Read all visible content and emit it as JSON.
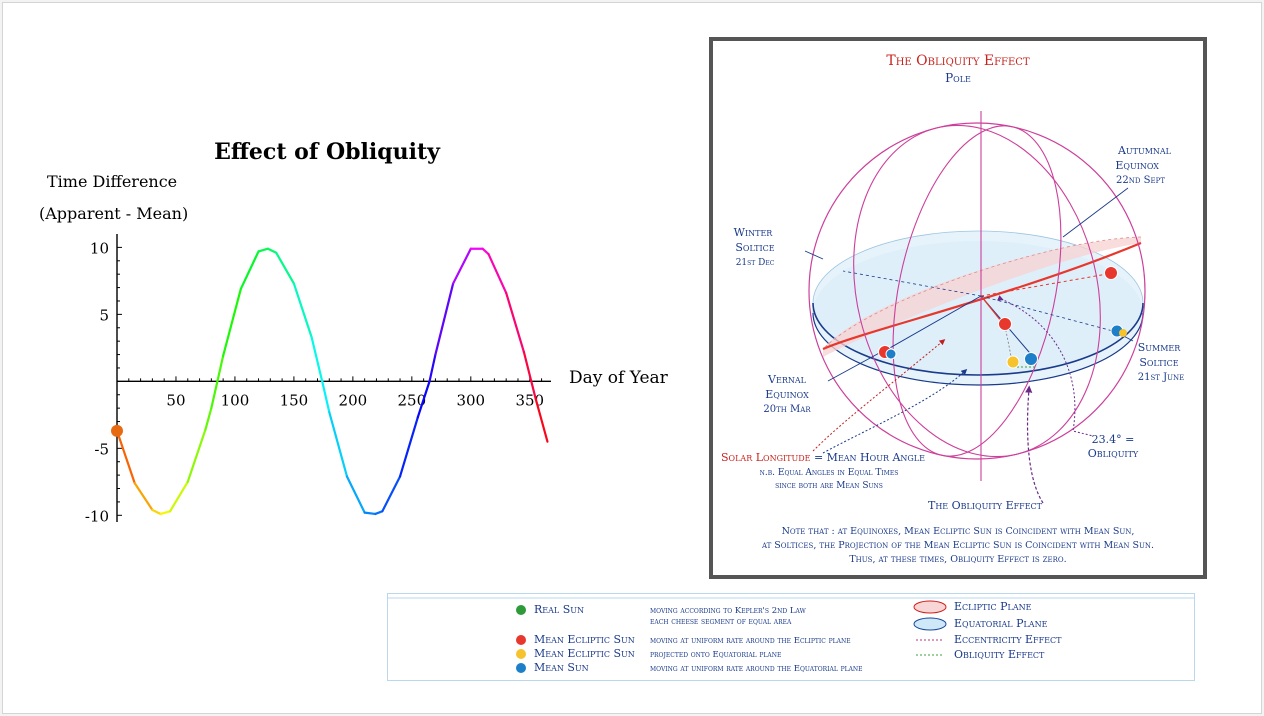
{
  "chart_data": {
    "type": "line",
    "title": "Effect of Obliquity",
    "ylabel_line1": "Time Difference",
    "ylabel_line2": "(Apparent - Mean)",
    "xlabel": "Day of Year",
    "xlim": [
      0,
      368
    ],
    "ylim": [
      -10.5,
      11
    ],
    "x_ticks": [
      50,
      100,
      150,
      200,
      250,
      300,
      350
    ],
    "y_ticks": [
      10,
      5,
      -5,
      -10
    ],
    "y_tick_labels": [
      "10",
      "5",
      "-5",
      "-10"
    ],
    "marker": {
      "x": 0,
      "y": -3.7,
      "color": "#e86a10"
    },
    "series": [
      {
        "x": [
          0,
          15,
          30,
          37,
          45,
          60,
          75,
          80,
          90,
          105,
          120,
          128,
          135,
          150,
          165,
          174,
          180,
          195,
          210,
          219,
          225,
          240,
          255,
          265,
          270,
          285,
          300,
          310,
          315,
          330,
          345,
          355,
          365
        ],
        "y": [
          -3.7,
          -7.6,
          -9.6,
          -9.9,
          -9.7,
          -7.5,
          -3.6,
          -2.0,
          1.9,
          6.9,
          9.7,
          9.9,
          9.6,
          7.3,
          3.3,
          0.0,
          -2.3,
          -7.1,
          -9.8,
          -9.9,
          -9.7,
          -7.1,
          -2.7,
          0.0,
          2.0,
          7.3,
          9.9,
          9.9,
          9.5,
          6.6,
          2.2,
          -1.3,
          -4.5
        ]
      }
    ]
  },
  "diagram": {
    "title": "The Obliquity Effect",
    "pole_label": "Pole",
    "autumnal": {
      "line1": "Autumnal",
      "line2": "Equinox",
      "date": "22nd Sept"
    },
    "winter": {
      "line1": "Winter",
      "line2": "Soltice",
      "date": "21st Dec"
    },
    "summer": {
      "line1": "Summer",
      "line2": "Soltice",
      "date": "21st June"
    },
    "vernal": {
      "line1": "Vernal",
      "line2": "Equinox",
      "date": "20th Mar"
    },
    "angle_label": {
      "line1": "23.4° =",
      "line2": "Obliquity"
    },
    "solar_longitude": {
      "red": "Solar Longitude",
      "rest": " = Mean Hour Angle",
      "line2": "n.b. Equal Angles in Equal Times",
      "line3": "since both are Mean Suns"
    },
    "obliquity_effect_label": "The Obliquity Effect",
    "note": {
      "line1": "Note that : at Equinoxes, Mean Ecliptic Sun is Coincident with Mean Sun,",
      "line2": "at Soltices, the Projection of the Mean Ecliptic Sun is Coincident with Mean Sun.",
      "line3": "Thus, at these times, Obliquity Effect is zero."
    }
  },
  "legend": {
    "items": [
      {
        "name": "Real Sun",
        "desc1": "moving according to Kepler's 2nd Law",
        "desc2": "each cheese segment of equal area",
        "color": "#2e9a3a"
      },
      {
        "name": "Mean Ecliptic Sun",
        "desc1": "moving at uniform rate around the Ecliptic plane",
        "color": "#e8372c"
      },
      {
        "name": "Mean Ecliptic Sun",
        "desc1": "projected onto Equatorial plane",
        "color": "#f6c32c"
      },
      {
        "name": "Mean Sun",
        "desc1": "moving at uniform rate around the Equatorial plane",
        "color": "#1c7fc8"
      }
    ],
    "planes": [
      {
        "name": "Ecliptic Plane",
        "fill": "#f9d6d6",
        "stroke": "#d02020"
      },
      {
        "name": "Equatorial Plane",
        "fill": "#cfe8f8",
        "stroke": "#1a4a9a"
      }
    ],
    "effects": [
      {
        "name": "Eccentricity Effect",
        "color": "#c0307a"
      },
      {
        "name": "Obliquity Effect",
        "color": "#3aa03a"
      }
    ]
  }
}
